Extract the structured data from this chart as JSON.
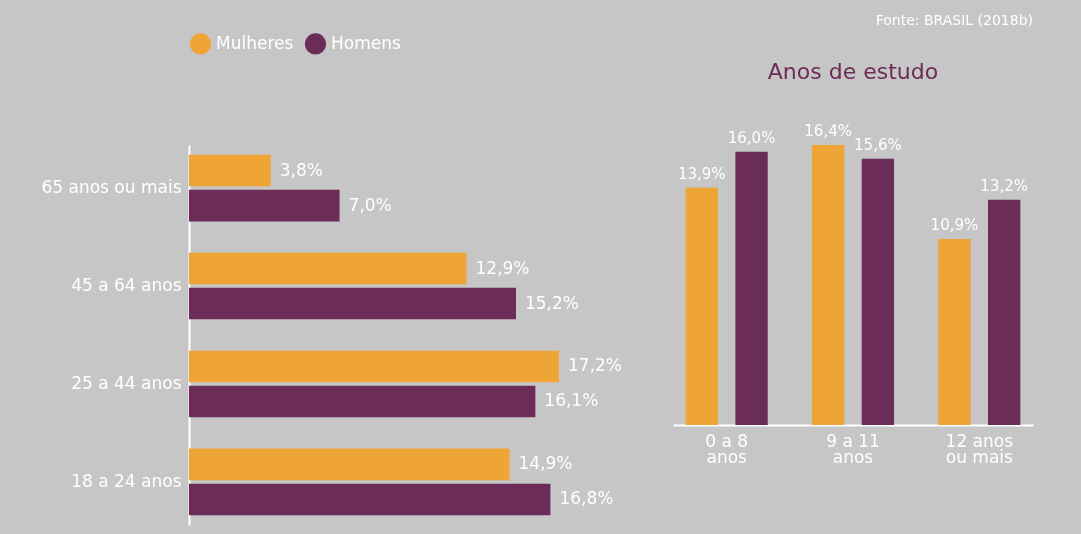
{
  "chart_data": [
    {
      "type": "bar",
      "orientation": "horizontal",
      "categories": [
        "65 anos ou mais",
        "45 a 64 anos",
        "25 a 44 anos",
        "18 a 24 anos"
      ],
      "series": [
        {
          "name": "Mulheres",
          "color": "#eea536",
          "values": [
            3.8,
            12.9,
            17.2,
            14.9
          ],
          "value_labels": [
            "3,8%",
            "12,9%",
            "17,2%",
            "14,9%"
          ]
        },
        {
          "name": "Homens",
          "color": "#6b2c57",
          "values": [
            7.0,
            15.2,
            16.1,
            16.8
          ],
          "value_labels": [
            "7,0%",
            "15,2%",
            "16,1%",
            "16,8%"
          ]
        }
      ],
      "legend": "top left",
      "annotations": [
        "Fonte: BRASIL (2018b)"
      ]
    },
    {
      "type": "bar",
      "title": "Anos de estudo",
      "categories": [
        "0 a 8 anos",
        "9 a 11 anos",
        "12 anos ou mais"
      ],
      "series": [
        {
          "name": "Mulheres",
          "color": "#eea536",
          "values": [
            13.9,
            16.4,
            10.9
          ],
          "value_labels": [
            "13,9%",
            "16,4%",
            "10,9%"
          ]
        },
        {
          "name": "Homens",
          "color": "#6b2c57",
          "values": [
            16.0,
            15.6,
            13.2
          ],
          "value_labels": [
            "16,0%",
            "15,6%",
            "13,2%"
          ]
        }
      ],
      "legend": "top left"
    }
  ]
}
